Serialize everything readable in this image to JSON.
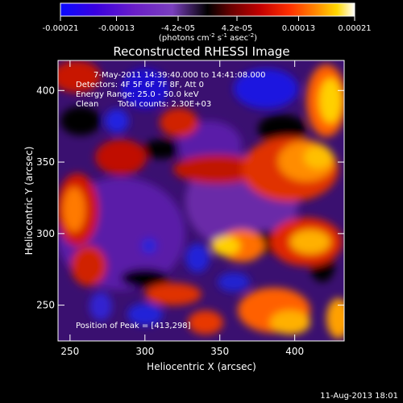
{
  "chart_data": {
    "type": "heatmap",
    "title": "Reconstructed RHESSI Image",
    "xlabel": "Heliocentric X (arcsec)",
    "ylabel": "Heliocentric Y (arcsec)",
    "x_ticks": [
      "250",
      "300",
      "350",
      "400"
    ],
    "x_tick_values": [
      250,
      300,
      350,
      400
    ],
    "y_ticks": [
      "250",
      "300",
      "350",
      "400"
    ],
    "y_tick_values": [
      250,
      300,
      350,
      400
    ],
    "xlim": [
      242,
      433
    ],
    "ylim": [
      225,
      421
    ],
    "colorbar": {
      "ticks": [
        "-0.00021",
        "-0.00013",
        "-4.2e-05",
        "4.2e-05",
        "0.00013",
        "0.00021"
      ],
      "tick_values": [
        -0.00021,
        -0.00013,
        -4.2e-05,
        4.2e-05,
        0.00013,
        0.00021
      ],
      "range": [
        -0.00021,
        0.00021
      ],
      "units_text": "(photons cm",
      "units_sup1": "-2",
      "units_mid": " s",
      "units_sup2": "-1",
      "units_end": " asec",
      "units_sup3": "-2",
      "units_close": ")"
    },
    "annotations": {
      "time_range": "7-May-2011 14:39:40.000 to 14:41:08.000",
      "detectors": "Detectors: 4F 5F 6F 7F 8F, Att 0",
      "energy": "Energy Range: 25.0 - 50.0 keV",
      "algorithm": "Clean",
      "counts": "Total counts: 2.30E+03",
      "peak": "Position of Peak = [413,298]"
    },
    "peak_position": [
      413,
      298
    ],
    "total_counts": 2300,
    "energy_range_kev": [
      25.0,
      50.0
    ],
    "colors": {
      "background": "#000000",
      "text": "#ffffff"
    }
  },
  "footer": {
    "date": "11-Aug-2013 18:01"
  }
}
